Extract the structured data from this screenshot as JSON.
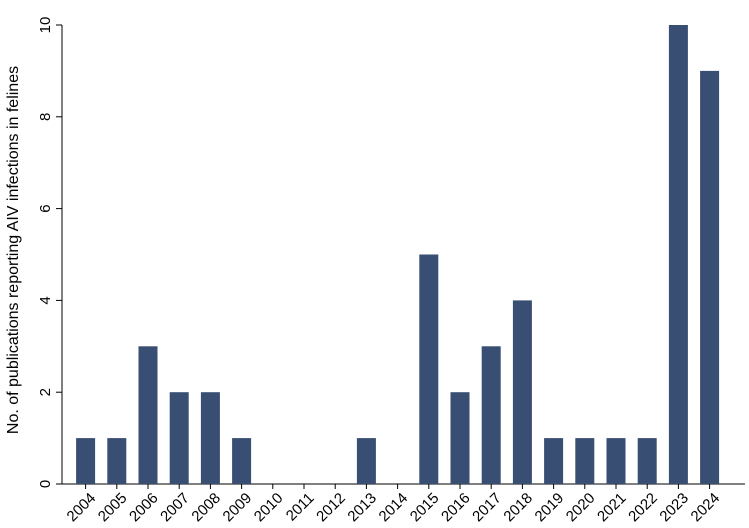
{
  "chart_data": {
    "type": "bar",
    "y_label": "No. of publications reporting AIV infections in felines",
    "categories": [
      "2004",
      "2005",
      "2006",
      "2007",
      "2008",
      "2009",
      "2010",
      "2011",
      "2012",
      "2013",
      "2014",
      "2015",
      "2016",
      "2017",
      "2018",
      "2019",
      "2020",
      "2021",
      "2022",
      "2023",
      "2024"
    ],
    "values": [
      1,
      1,
      3,
      2,
      2,
      1,
      0,
      0,
      0,
      1,
      0,
      5,
      2,
      3,
      4,
      1,
      1,
      1,
      1,
      10,
      9
    ],
    "color": "#384e72",
    "ylim": [
      0,
      10
    ],
    "yticks": [
      0,
      2,
      4,
      6,
      8,
      10
    ],
    "grid": false
  }
}
